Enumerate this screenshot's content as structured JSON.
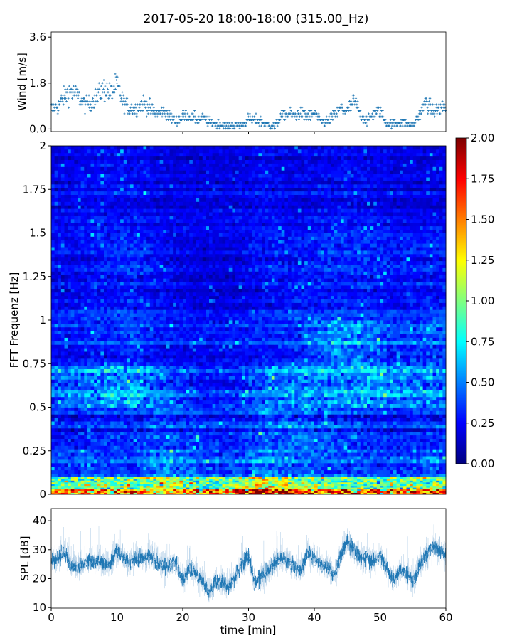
{
  "title": "2017-05-20 18:00-18:00 (315.00_Hz)",
  "chart_data": [
    {
      "type": "scatter",
      "name": "wind",
      "ylabel": "Wind [m/s]",
      "xlim": [
        0,
        60
      ],
      "ylim": [
        -0.1,
        3.8
      ],
      "yticks": [
        "0.0",
        "1.8",
        "3.6"
      ],
      "ytick_values": [
        0,
        1.8,
        3.6
      ],
      "marker": "+",
      "color": "#1f77b4",
      "x_minutes": [
        0,
        1,
        2,
        3,
        4,
        5,
        6,
        7,
        8,
        9,
        10,
        11,
        12,
        13,
        14,
        15,
        16,
        17,
        18,
        19,
        20,
        21,
        22,
        23,
        24,
        25,
        26,
        27,
        28,
        29,
        30,
        31,
        32,
        33,
        34,
        35,
        36,
        37,
        38,
        39,
        40,
        41,
        42,
        43,
        44,
        45,
        46,
        47,
        48,
        49,
        50,
        51,
        52,
        53,
        54,
        55,
        56,
        57,
        58,
        59,
        60
      ],
      "values": [
        0.8,
        0.9,
        1.3,
        1.5,
        1.3,
        1.0,
        1.0,
        1.3,
        1.6,
        1.4,
        1.7,
        1.0,
        0.8,
        0.8,
        1.0,
        0.8,
        0.6,
        0.7,
        0.5,
        0.3,
        0.5,
        0.5,
        0.4,
        0.4,
        0.3,
        0.2,
        0.15,
        0.1,
        0.15,
        0.15,
        0.4,
        0.35,
        0.3,
        0.15,
        0.1,
        0.5,
        0.6,
        0.5,
        0.6,
        0.5,
        0.6,
        0.3,
        0.3,
        0.5,
        0.8,
        0.7,
        1.1,
        0.6,
        0.3,
        0.6,
        0.7,
        0.2,
        0.2,
        0.3,
        0.2,
        0.15,
        0.6,
        1.1,
        0.7,
        0.8,
        0.9
      ]
    },
    {
      "type": "heatmap",
      "name": "spectrogram",
      "ylabel": "FFT Frequenz [Hz]",
      "xlim": [
        0,
        60
      ],
      "ylim": [
        0,
        2
      ],
      "yticks": [
        "0",
        "0.25",
        "0.5",
        "0.75",
        "1",
        "1.25",
        "1.5",
        "1.75",
        "2"
      ],
      "ytick_values": [
        0,
        0.25,
        0.5,
        0.75,
        1,
        1.25,
        1.5,
        1.75,
        2
      ],
      "colormap": "jet",
      "clim": [
        0,
        2
      ],
      "colorbar_ticks": [
        "0.00",
        "0.25",
        "0.50",
        "0.75",
        "1.00",
        "1.25",
        "1.50",
        "1.75",
        "2.00"
      ],
      "colorbar_tick_values": [
        0,
        0.25,
        0.5,
        0.75,
        1,
        1.25,
        1.5,
        1.75,
        2
      ],
      "time_bin_centers_min": [
        2.5,
        7.5,
        12.5,
        17.5,
        22.5,
        27.5,
        32.5,
        37.5,
        42.5,
        47.5,
        52.5,
        57.5
      ],
      "freq_bin_edges_hz": [
        0,
        0.03,
        0.1,
        0.25,
        0.5,
        0.75,
        1.0,
        1.25,
        1.5,
        2.0
      ],
      "values": [
        [
          1.4,
          1.5,
          1.5,
          1.4,
          1.5,
          1.6,
          1.9,
          1.6,
          1.5,
          1.5,
          1.5,
          1.6
        ],
        [
          0.9,
          1.0,
          0.9,
          1.1,
          0.9,
          0.9,
          1.2,
          1.0,
          0.9,
          0.9,
          1.0,
          1.0
        ],
        [
          0.35,
          0.4,
          0.35,
          0.55,
          0.4,
          0.4,
          0.55,
          0.45,
          0.4,
          0.4,
          0.35,
          0.45
        ],
        [
          0.3,
          0.35,
          0.35,
          0.4,
          0.35,
          0.3,
          0.45,
          0.45,
          0.4,
          0.35,
          0.3,
          0.35
        ],
        [
          0.45,
          0.55,
          0.6,
          0.45,
          0.3,
          0.3,
          0.45,
          0.55,
          0.55,
          0.6,
          0.5,
          0.5
        ],
        [
          0.25,
          0.3,
          0.35,
          0.25,
          0.25,
          0.25,
          0.3,
          0.3,
          0.5,
          0.5,
          0.35,
          0.4
        ],
        [
          0.25,
          0.3,
          0.3,
          0.25,
          0.2,
          0.2,
          0.25,
          0.3,
          0.3,
          0.3,
          0.25,
          0.3
        ],
        [
          0.25,
          0.3,
          0.35,
          0.25,
          0.2,
          0.2,
          0.3,
          0.3,
          0.35,
          0.35,
          0.3,
          0.3
        ],
        [
          0.22,
          0.25,
          0.25,
          0.2,
          0.2,
          0.2,
          0.25,
          0.2,
          0.25,
          0.25,
          0.2,
          0.2
        ]
      ]
    },
    {
      "type": "line",
      "name": "spl",
      "xlabel": "time [min]",
      "ylabel": "SPL [dB]",
      "xlim": [
        0,
        60
      ],
      "ylim": [
        9.8,
        44.2
      ],
      "xticks": [
        "0",
        "10",
        "20",
        "30",
        "40",
        "50",
        "60"
      ],
      "xtick_values": [
        0,
        10,
        20,
        30,
        40,
        50,
        60
      ],
      "yticks": [
        "10",
        "20",
        "30",
        "40"
      ],
      "ytick_values": [
        10,
        20,
        30,
        40
      ],
      "color": "#1f77b4",
      "x_minutes": [
        0,
        1,
        2,
        3,
        4,
        5,
        6,
        7,
        8,
        9,
        10,
        11,
        12,
        13,
        14,
        15,
        16,
        17,
        18,
        19,
        20,
        21,
        22,
        23,
        24,
        25,
        26,
        27,
        28,
        29,
        30,
        31,
        32,
        33,
        34,
        35,
        36,
        37,
        38,
        39,
        40,
        41,
        42,
        43,
        44,
        45,
        46,
        47,
        48,
        49,
        50,
        51,
        52,
        53,
        54,
        55,
        56,
        57,
        58,
        59,
        60
      ],
      "values": [
        26,
        27,
        29,
        25,
        24,
        25,
        26,
        26,
        25,
        25,
        30,
        27,
        26,
        27,
        27,
        28,
        26,
        24,
        25,
        25,
        19,
        24,
        22,
        19,
        15,
        19,
        19,
        17,
        21,
        25,
        28,
        18,
        21,
        22,
        26,
        27,
        26,
        24,
        23,
        29,
        27,
        25,
        24,
        21,
        28,
        33,
        30,
        27,
        27,
        26,
        28,
        24,
        19,
        23,
        22,
        19,
        25,
        28,
        31,
        30,
        28
      ]
    }
  ]
}
